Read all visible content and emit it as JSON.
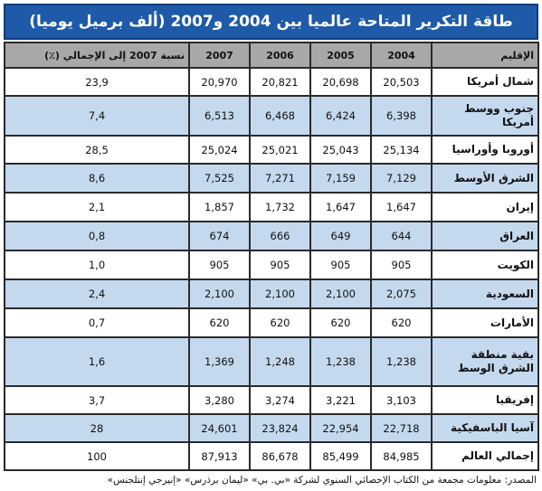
{
  "title": "طاقة التكرير المتاحة عالميا بين 2004 و2007 (ألف برميل يوميا)",
  "headers": {
    "region": "الإقليم",
    "y2004": "2004",
    "y2005": "2005",
    "y2006": "2006",
    "y2007": "2007",
    "share": "نسبة 2007 إلى الإجمالي (٪)"
  },
  "rows": [
    {
      "region": "شمال أمريكا",
      "y2004": "20,503",
      "y2005": "20,698",
      "y2006": "20,821",
      "y2007": "20,970",
      "share": "23,9"
    },
    {
      "region": "جنوب ووسط أمريكا",
      "y2004": "6,398",
      "y2005": "6,424",
      "y2006": "6,468",
      "y2007": "6,513",
      "share": "7,4"
    },
    {
      "region": "أوروبا وأوراسيا",
      "y2004": "25,134",
      "y2005": "25,043",
      "y2006": "25,021",
      "y2007": "25,024",
      "share": "28,5"
    },
    {
      "region": "الشرق الأوسط",
      "y2004": "7,129",
      "y2005": "7,159",
      "y2006": "7,271",
      "y2007": "7,525",
      "share": "8,6"
    },
    {
      "region": "إيران",
      "y2004": "1,647",
      "y2005": "1,647",
      "y2006": "1,732",
      "y2007": "1,857",
      "share": "2,1"
    },
    {
      "region": "العراق",
      "y2004": "644",
      "y2005": "649",
      "y2006": "666",
      "y2007": "674",
      "share": "0,8"
    },
    {
      "region": "الكويت",
      "y2004": "905",
      "y2005": "905",
      "y2006": "905",
      "y2007": "905",
      "share": "1,0"
    },
    {
      "region": "السعودية",
      "y2004": "2,075",
      "y2005": "2,100",
      "y2006": "2,100",
      "y2007": "2,100",
      "share": "2,4"
    },
    {
      "region": "الأمارات",
      "y2004": "620",
      "y2005": "620",
      "y2006": "620",
      "y2007": "620",
      "share": "0,7"
    },
    {
      "region": "بقية منطقة الشرق الوسط",
      "y2004": "1,238",
      "y2005": "1,238",
      "y2006": "1,248",
      "y2007": "1,369",
      "share": "1,6"
    },
    {
      "region": "إفريقيا",
      "y2004": "3,103",
      "y2005": "3,221",
      "y2006": "3,274",
      "y2007": "3,280",
      "share": "3,7"
    },
    {
      "region": "آسيا الباسفيكية",
      "y2004": "22,718",
      "y2005": "22,954",
      "y2006": "23,824",
      "y2007": "24,601",
      "share": "28"
    },
    {
      "region": "إجمالي العالم",
      "y2004": "84,985",
      "y2005": "85,499",
      "y2006": "86,678",
      "y2007": "87,913",
      "share": "100"
    }
  ],
  "source": "المصدر: معلومات مجمعة من الكتاب الإحصائي السنوي لشركة «بي. بي» «ليمان برذرس» «إنيرجي إنتلجنس»",
  "colors": {
    "title_bg": "#1f5aa8",
    "header_bg": "#a8a8a8",
    "row_alt_bg": "#c5d9ee",
    "row_bg": "#ffffff"
  }
}
